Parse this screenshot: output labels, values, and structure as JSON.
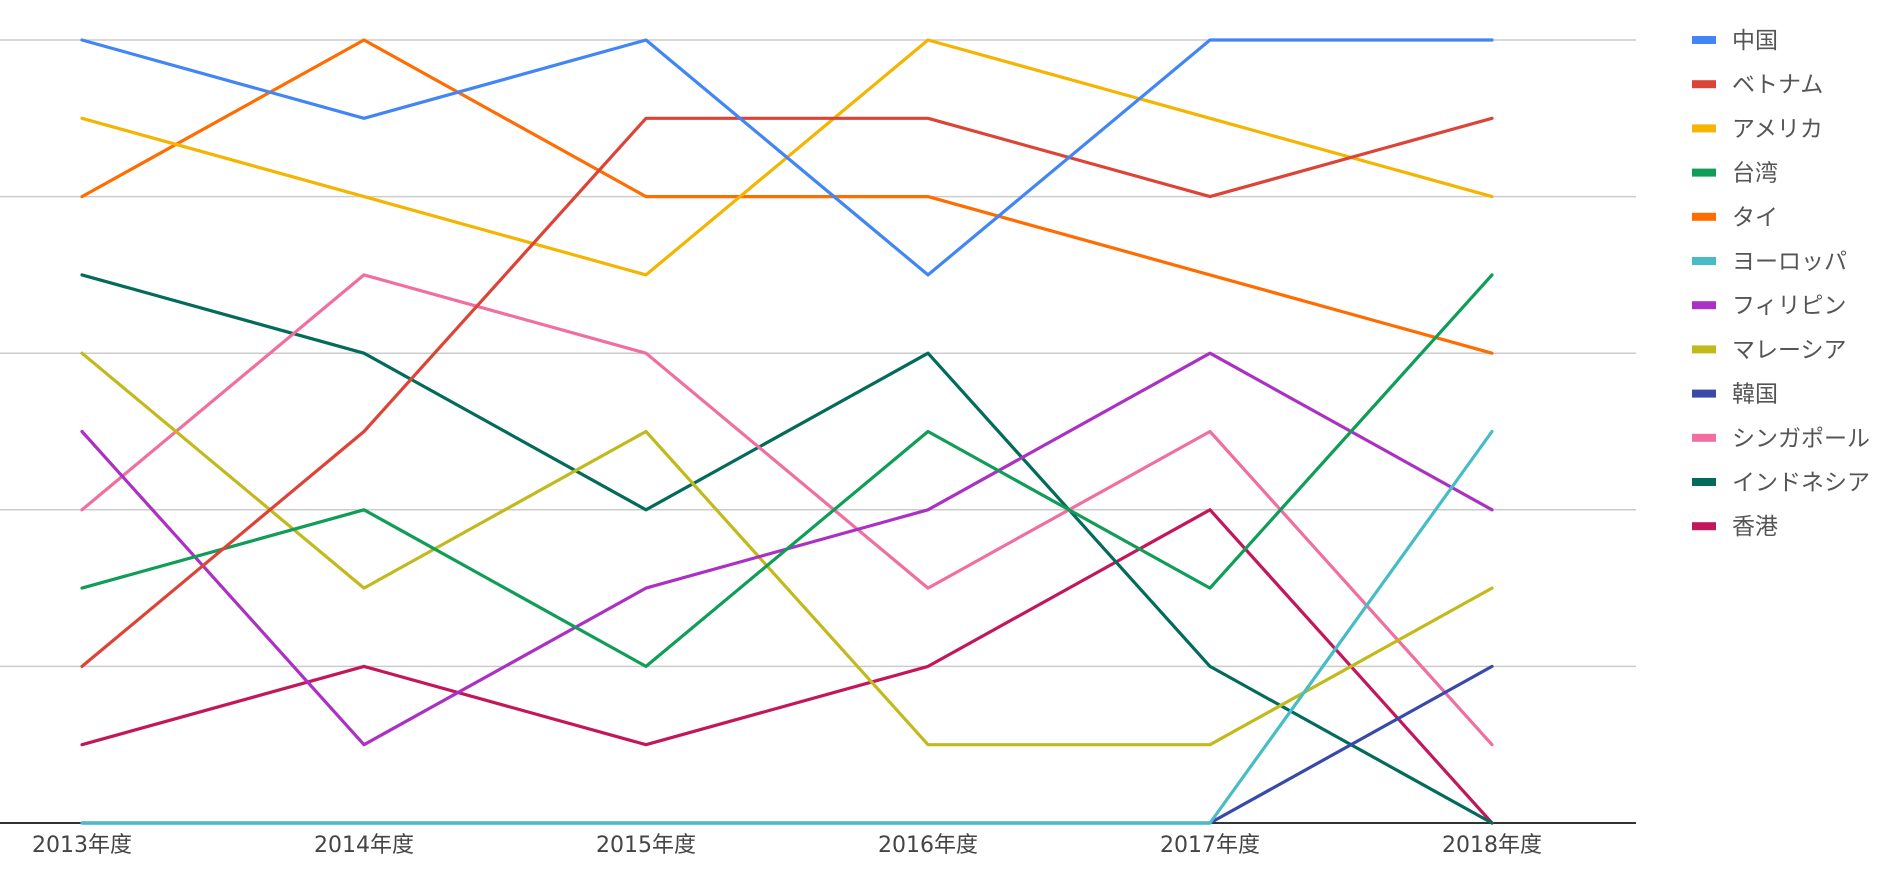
{
  "chart_data": {
    "type": "line",
    "x": [
      "2013年度",
      "2014年度",
      "2015年度",
      "2016年度",
      "2017年度",
      "2018年度"
    ],
    "ylim": [
      0,
      10
    ],
    "y_gridlines": [
      2,
      4,
      6,
      8,
      10
    ],
    "grid": true,
    "legend_position": "right",
    "series": [
      {
        "name": "中国",
        "color": "#4285F4",
        "values": [
          10,
          9,
          10,
          7,
          10,
          10
        ]
      },
      {
        "name": "ベトナム",
        "color": "#DB4437",
        "values": [
          2,
          5,
          9,
          9,
          8,
          9
        ]
      },
      {
        "name": "アメリカ",
        "color": "#F4B400",
        "values": [
          9,
          8,
          7,
          10,
          9,
          8
        ]
      },
      {
        "name": "台湾",
        "color": "#0F9D58",
        "values": [
          3,
          4,
          2,
          5,
          3,
          7
        ]
      },
      {
        "name": "タイ",
        "color": "#FF6D01",
        "values": [
          8,
          10,
          8,
          8,
          7,
          6
        ]
      },
      {
        "name": "ヨーロッパ",
        "color": "#46BDC6",
        "values": [
          0,
          0,
          0,
          0,
          0,
          5
        ]
      },
      {
        "name": "フィリピン",
        "color": "#AB30C4",
        "values": [
          5,
          1,
          3,
          4,
          6,
          4
        ]
      },
      {
        "name": "マレーシア",
        "color": "#C2BA1D",
        "values": [
          6,
          3,
          5,
          1,
          1,
          3
        ]
      },
      {
        "name": "韓国",
        "color": "#3949AB",
        "values": [
          0,
          0,
          0,
          0,
          0,
          2
        ]
      },
      {
        "name": "シンガポール",
        "color": "#F06FA0",
        "values": [
          4,
          7,
          6,
          3,
          5,
          1
        ]
      },
      {
        "name": "インドネシア",
        "color": "#036B5A",
        "values": [
          7,
          6,
          4,
          6,
          2,
          0
        ]
      },
      {
        "name": "香港",
        "color": "#C2185B",
        "values": [
          1,
          2,
          1,
          2,
          4,
          0
        ]
      }
    ]
  }
}
